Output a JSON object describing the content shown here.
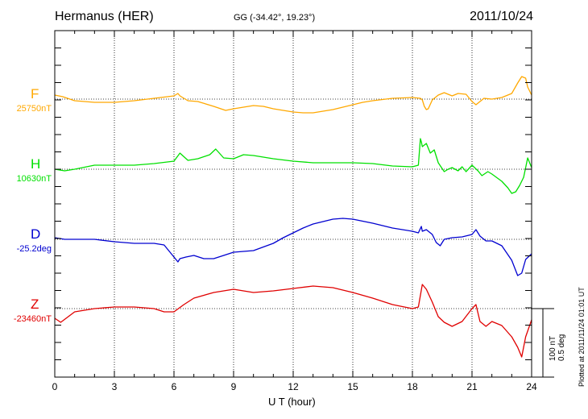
{
  "header": {
    "station": "Hermanus (HER)",
    "coords": "GG (-34.42°,  19.23°)",
    "date": "2011/10/24"
  },
  "footer": {
    "xlabel": "U T (hour)",
    "plotted": "Plotted at 2011/11/24 01:01 UT",
    "scale_nt": "100 nT",
    "scale_deg": "0.5 deg"
  },
  "colors": {
    "F": "#ffa800",
    "H": "#00e000",
    "D": "#0000d0",
    "Z": "#e00000"
  },
  "chart_data": {
    "type": "line",
    "xlabel": "U T (hour)",
    "xlim": [
      0,
      24
    ],
    "xticks": [
      "0",
      "3",
      "6",
      "9",
      "12",
      "15",
      "18",
      "21",
      "24"
    ],
    "grid": true,
    "components": [
      {
        "name": "F",
        "baseline": "25750nT",
        "color": "#ffa800",
        "x": [
          0,
          0.4,
          1,
          2,
          3,
          4,
          5,
          6,
          6.2,
          6.3,
          6.7,
          7.2,
          8,
          8.6,
          9,
          9.5,
          10,
          10.5,
          11,
          12,
          12.5,
          13,
          14,
          15,
          15.5,
          16,
          17,
          18,
          18.4,
          18.5,
          18.6,
          18.7,
          18.8,
          19,
          19.3,
          19.6,
          20,
          20.3,
          20.7,
          21,
          21.2,
          21.4,
          21.6,
          22,
          22.5,
          23,
          23.3,
          23.5,
          23.7,
          23.8,
          24
        ],
        "y": [
          5,
          3,
          -2,
          -4,
          -4,
          -2,
          1,
          4,
          7,
          4,
          -2,
          -3,
          -9,
          -14,
          -12,
          -10,
          -8,
          -9,
          -12,
          -16,
          -17,
          -17,
          -13,
          -7,
          -4,
          -2,
          1,
          2,
          1,
          -1,
          -9,
          -13,
          -12,
          -1,
          5,
          8,
          4,
          7,
          6,
          -3,
          -7,
          -3,
          1,
          0,
          2,
          7,
          20,
          28,
          26,
          15,
          5
        ]
      },
      {
        "name": "H",
        "baseline": "10630nT",
        "color": "#00e000",
        "x": [
          0,
          0.5,
          1,
          2,
          3,
          4,
          5,
          6,
          6.3,
          6.7,
          7.2,
          7.8,
          8.1,
          8.5,
          9,
          9.5,
          10,
          11,
          12,
          13,
          14,
          15,
          16,
          17,
          18,
          18.3,
          18.4,
          18.45,
          18.5,
          18.7,
          18.9,
          19.1,
          19.3,
          19.6,
          19.8,
          20,
          20.3,
          20.5,
          20.7,
          21,
          21.3,
          21.5,
          21.8,
          22,
          22.5,
          22.8,
          23,
          23.2,
          23.4,
          23.6,
          23.8,
          24
        ],
        "y": [
          0,
          -2,
          0,
          5,
          5,
          5,
          7,
          10,
          20,
          11,
          13,
          18,
          25,
          14,
          13,
          18,
          17,
          13,
          10,
          8,
          8,
          8,
          7,
          4,
          3,
          5,
          38,
          34,
          28,
          32,
          20,
          24,
          8,
          -3,
          0,
          2,
          -2,
          3,
          -3,
          5,
          -2,
          -8,
          -3,
          -6,
          -15,
          -23,
          -30,
          -28,
          -20,
          -10,
          14,
          2
        ]
      },
      {
        "name": "D",
        "baseline": "-25.2deg",
        "color": "#0000d0",
        "x": [
          0,
          0.5,
          1,
          2,
          3,
          4,
          5,
          5.5,
          6,
          6.2,
          6.3,
          6.6,
          7,
          7.5,
          8,
          8.5,
          9,
          10,
          11,
          11.5,
          12,
          12.5,
          13,
          14,
          14.5,
          15,
          16,
          17,
          18,
          18.3,
          18.45,
          18.5,
          18.7,
          19,
          19.2,
          19.4,
          19.6,
          20,
          20.5,
          21,
          21.2,
          21.4,
          21.7,
          22,
          22.5,
          23,
          23.3,
          23.5,
          23.7,
          24
        ],
        "y": [
          2,
          0,
          0,
          0,
          -3,
          -5,
          -5,
          -7,
          -22,
          -28,
          -24,
          -22,
          -20,
          -24,
          -24,
          -20,
          -16,
          -14,
          -5,
          2,
          8,
          14,
          19,
          25,
          26,
          25,
          20,
          14,
          10,
          8,
          16,
          10,
          12,
          6,
          -4,
          -8,
          0,
          2,
          3,
          6,
          12,
          4,
          -2,
          -2,
          -8,
          -26,
          -45,
          -42,
          -25,
          -18
        ]
      },
      {
        "name": "Z",
        "baseline": "-23460nT",
        "color": "#e00000",
        "x": [
          0,
          0.3,
          1,
          2,
          3,
          4,
          5,
          5.5,
          6,
          6.5,
          7,
          8,
          9,
          10,
          11,
          12,
          13,
          14,
          15,
          16,
          17,
          18,
          18.3,
          18.5,
          18.7,
          19,
          19.3,
          19.6,
          20,
          20.5,
          21,
          21.2,
          21.4,
          21.7,
          22,
          22.5,
          23,
          23.3,
          23.5,
          23.7,
          24
        ],
        "y": [
          -12,
          -17,
          -4,
          0,
          2,
          2,
          0,
          -4,
          -4,
          5,
          13,
          20,
          24,
          20,
          22,
          25,
          28,
          26,
          20,
          13,
          5,
          0,
          2,
          30,
          24,
          8,
          -10,
          -17,
          -22,
          -16,
          0,
          5,
          -16,
          -22,
          -16,
          -21,
          -35,
          -48,
          -60,
          -35,
          -14
        ]
      }
    ]
  }
}
